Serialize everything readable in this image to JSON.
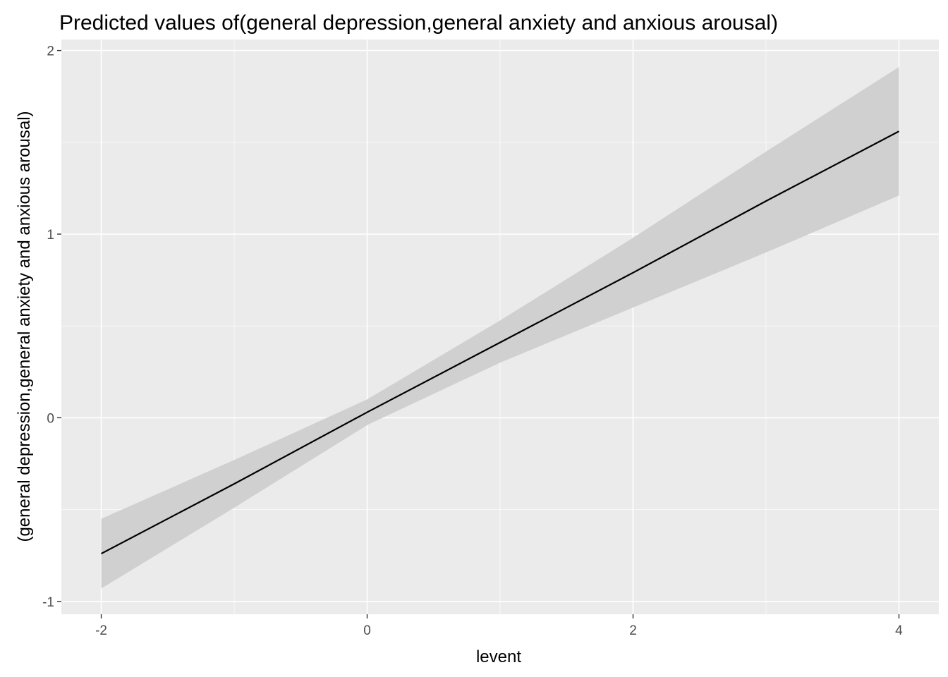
{
  "chart_data": {
    "type": "line",
    "title": "Predicted values of(general depression,general anxiety and anxious arousal)",
    "xlabel": "levent",
    "ylabel": "(general depression,general anxiety and anxious arousal)",
    "xlim": [
      -2.3,
      4.3
    ],
    "ylim": [
      -1.07,
      2.06
    ],
    "x_ticks": [
      -2,
      0,
      2,
      4
    ],
    "x_tick_labels": [
      "-2",
      "0",
      "2",
      "4"
    ],
    "y_ticks": [
      -1,
      0,
      1,
      2
    ],
    "y_tick_labels": [
      "-1",
      "0",
      "1",
      "2"
    ],
    "grid": true,
    "legend": "none",
    "series": [
      {
        "x": [
          -2,
          -1,
          0,
          1,
          2,
          3,
          4
        ],
        "y": [
          -0.74,
          -0.36,
          0.03,
          0.41,
          0.79,
          1.18,
          1.56
        ],
        "lower": [
          -0.93,
          -0.49,
          -0.04,
          0.3,
          0.6,
          0.9,
          1.21
        ],
        "upper": [
          -0.55,
          -0.23,
          0.1,
          0.53,
          0.98,
          1.45,
          1.91
        ]
      }
    ],
    "colors": {
      "panel": "#ebebeb",
      "grid_major": "#ffffff",
      "ribbon": "#d0d0d0",
      "line": "#000000"
    }
  }
}
